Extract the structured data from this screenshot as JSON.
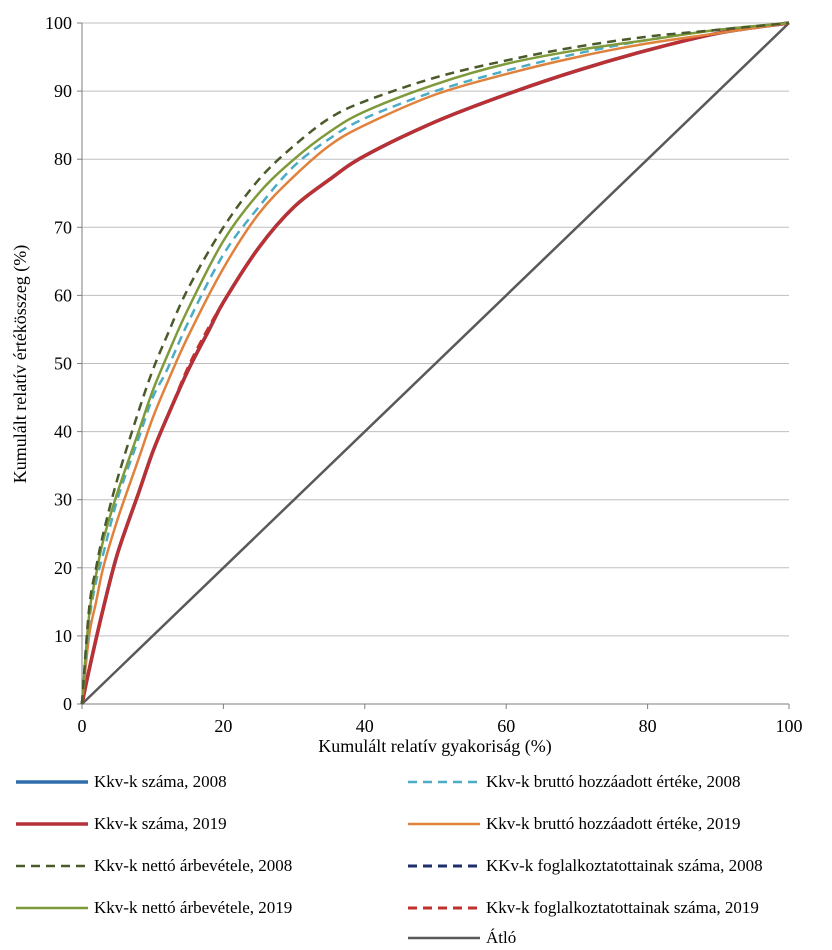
{
  "chart_data": {
    "type": "line",
    "xlabel": "Kumulált relatív gyakoriság (%)",
    "ylabel": "Kumulált relatív értékösszeg (%)",
    "xlim": [
      0,
      100
    ],
    "ylim": [
      0,
      100
    ],
    "x_ticks": [
      "0",
      "20",
      "40",
      "60",
      "80",
      "100"
    ],
    "y_ticks": [
      "0",
      "10",
      "20",
      "30",
      "40",
      "50",
      "60",
      "70",
      "80",
      "90",
      "100"
    ],
    "grid": "horizontal",
    "legend_position": "bottom",
    "series": [
      {
        "name": "Kkv-k száma, 2008",
        "color": "#2e6eaa",
        "dash": "solid",
        "x": [
          0,
          1,
          3,
          5,
          8,
          10,
          12,
          15,
          18,
          20,
          25,
          30,
          35,
          40,
          50,
          60,
          70,
          80,
          90,
          100
        ],
        "y": [
          0,
          5,
          14,
          22,
          31,
          37,
          42,
          49,
          55,
          59,
          67,
          73,
          77,
          80.5,
          85.5,
          89.5,
          93,
          96,
          98.5,
          100
        ]
      },
      {
        "name": "Kkv-k száma, 2019",
        "color": "#b5303a",
        "dash": "solid",
        "x": [
          0,
          1,
          3,
          5,
          8,
          10,
          12,
          15,
          18,
          20,
          25,
          30,
          35,
          40,
          50,
          60,
          70,
          80,
          90,
          100
        ],
        "y": [
          0,
          5,
          14,
          22,
          31,
          37,
          42,
          49,
          55,
          59,
          67,
          73,
          77,
          80.5,
          85.5,
          89.5,
          93,
          96,
          98.5,
          100
        ]
      },
      {
        "name": "Kkv-k nettó árbevétele, 2008",
        "color": "#4a5a2a",
        "dash": "dashed",
        "x": [
          0,
          1,
          2,
          3,
          5,
          8,
          10,
          12,
          15,
          20,
          25,
          30,
          35,
          40,
          50,
          60,
          70,
          80,
          90,
          100
        ],
        "y": [
          0,
          14,
          20,
          25,
          33,
          43,
          49,
          54,
          61,
          70,
          77,
          82,
          86,
          88.5,
          92,
          94.5,
          96.5,
          98,
          99,
          100
        ]
      },
      {
        "name": "Kkv-k nettó árbevétele, 2019",
        "color": "#7f9a3a",
        "dash": "solid",
        "x": [
          0,
          1,
          2,
          3,
          5,
          8,
          10,
          12,
          15,
          20,
          25,
          30,
          35,
          40,
          50,
          60,
          70,
          80,
          90,
          100
        ],
        "y": [
          0,
          13,
          19,
          24,
          31,
          40,
          46,
          51,
          58,
          68,
          75,
          80,
          84,
          87,
          91,
          94,
          96,
          97.5,
          99,
          100
        ]
      },
      {
        "name": "Kkv-k bruttó hozzáadott értéke, 2008",
        "color": "#4bacc6",
        "dash": "dashed",
        "x": [
          0,
          1,
          2,
          3,
          5,
          8,
          10,
          12,
          15,
          20,
          25,
          30,
          35,
          40,
          50,
          60,
          70,
          80,
          90,
          100
        ],
        "y": [
          0,
          12,
          18,
          22,
          30,
          39,
          45,
          49,
          56,
          66,
          73,
          79,
          83,
          86,
          90,
          93,
          95.5,
          97.5,
          99,
          100
        ]
      },
      {
        "name": "Kkv-k bruttó hozzáadott értéke, 2019",
        "color": "#e0823d",
        "dash": "solid",
        "x": [
          0,
          1,
          2,
          3,
          5,
          8,
          10,
          12,
          15,
          20,
          25,
          30,
          35,
          40,
          50,
          60,
          70,
          80,
          90,
          100
        ],
        "y": [
          0,
          10,
          15,
          20,
          27,
          36,
          42,
          47,
          54,
          64,
          72,
          77.5,
          82,
          85,
          89.5,
          92.5,
          95,
          97,
          98.5,
          100
        ]
      },
      {
        "name": "KKv-k foglalkoztatottainak száma, 2008",
        "color": "#1f2f6e",
        "dash": "dashed",
        "x": [
          0,
          1,
          3,
          5,
          8,
          10,
          12,
          15,
          18,
          20,
          25,
          30,
          35,
          40,
          50,
          60,
          70,
          80,
          90,
          100
        ],
        "y": [
          0,
          5,
          14,
          22,
          31,
          37,
          42,
          49,
          55,
          59,
          67,
          73,
          77,
          80.5,
          85.5,
          89.5,
          93,
          96,
          98.5,
          100
        ]
      },
      {
        "name": "Kkv-k foglalkoztatottainak száma, 2019",
        "color": "#c0302d",
        "dash": "dashed",
        "x": [
          0,
          1,
          3,
          5,
          8,
          10,
          12,
          15,
          18,
          20,
          25,
          30,
          35,
          40,
          50,
          60,
          70,
          80,
          90,
          100
        ],
        "y": [
          0,
          5,
          14,
          22,
          31,
          37,
          42,
          49.5,
          55.5,
          59,
          67,
          73,
          77,
          80.5,
          85.5,
          89.5,
          93,
          96,
          98.5,
          100
        ]
      },
      {
        "name": "Átló",
        "color": "#595959",
        "dash": "solid",
        "x": [
          0,
          100
        ],
        "y": [
          0,
          100
        ]
      }
    ]
  }
}
